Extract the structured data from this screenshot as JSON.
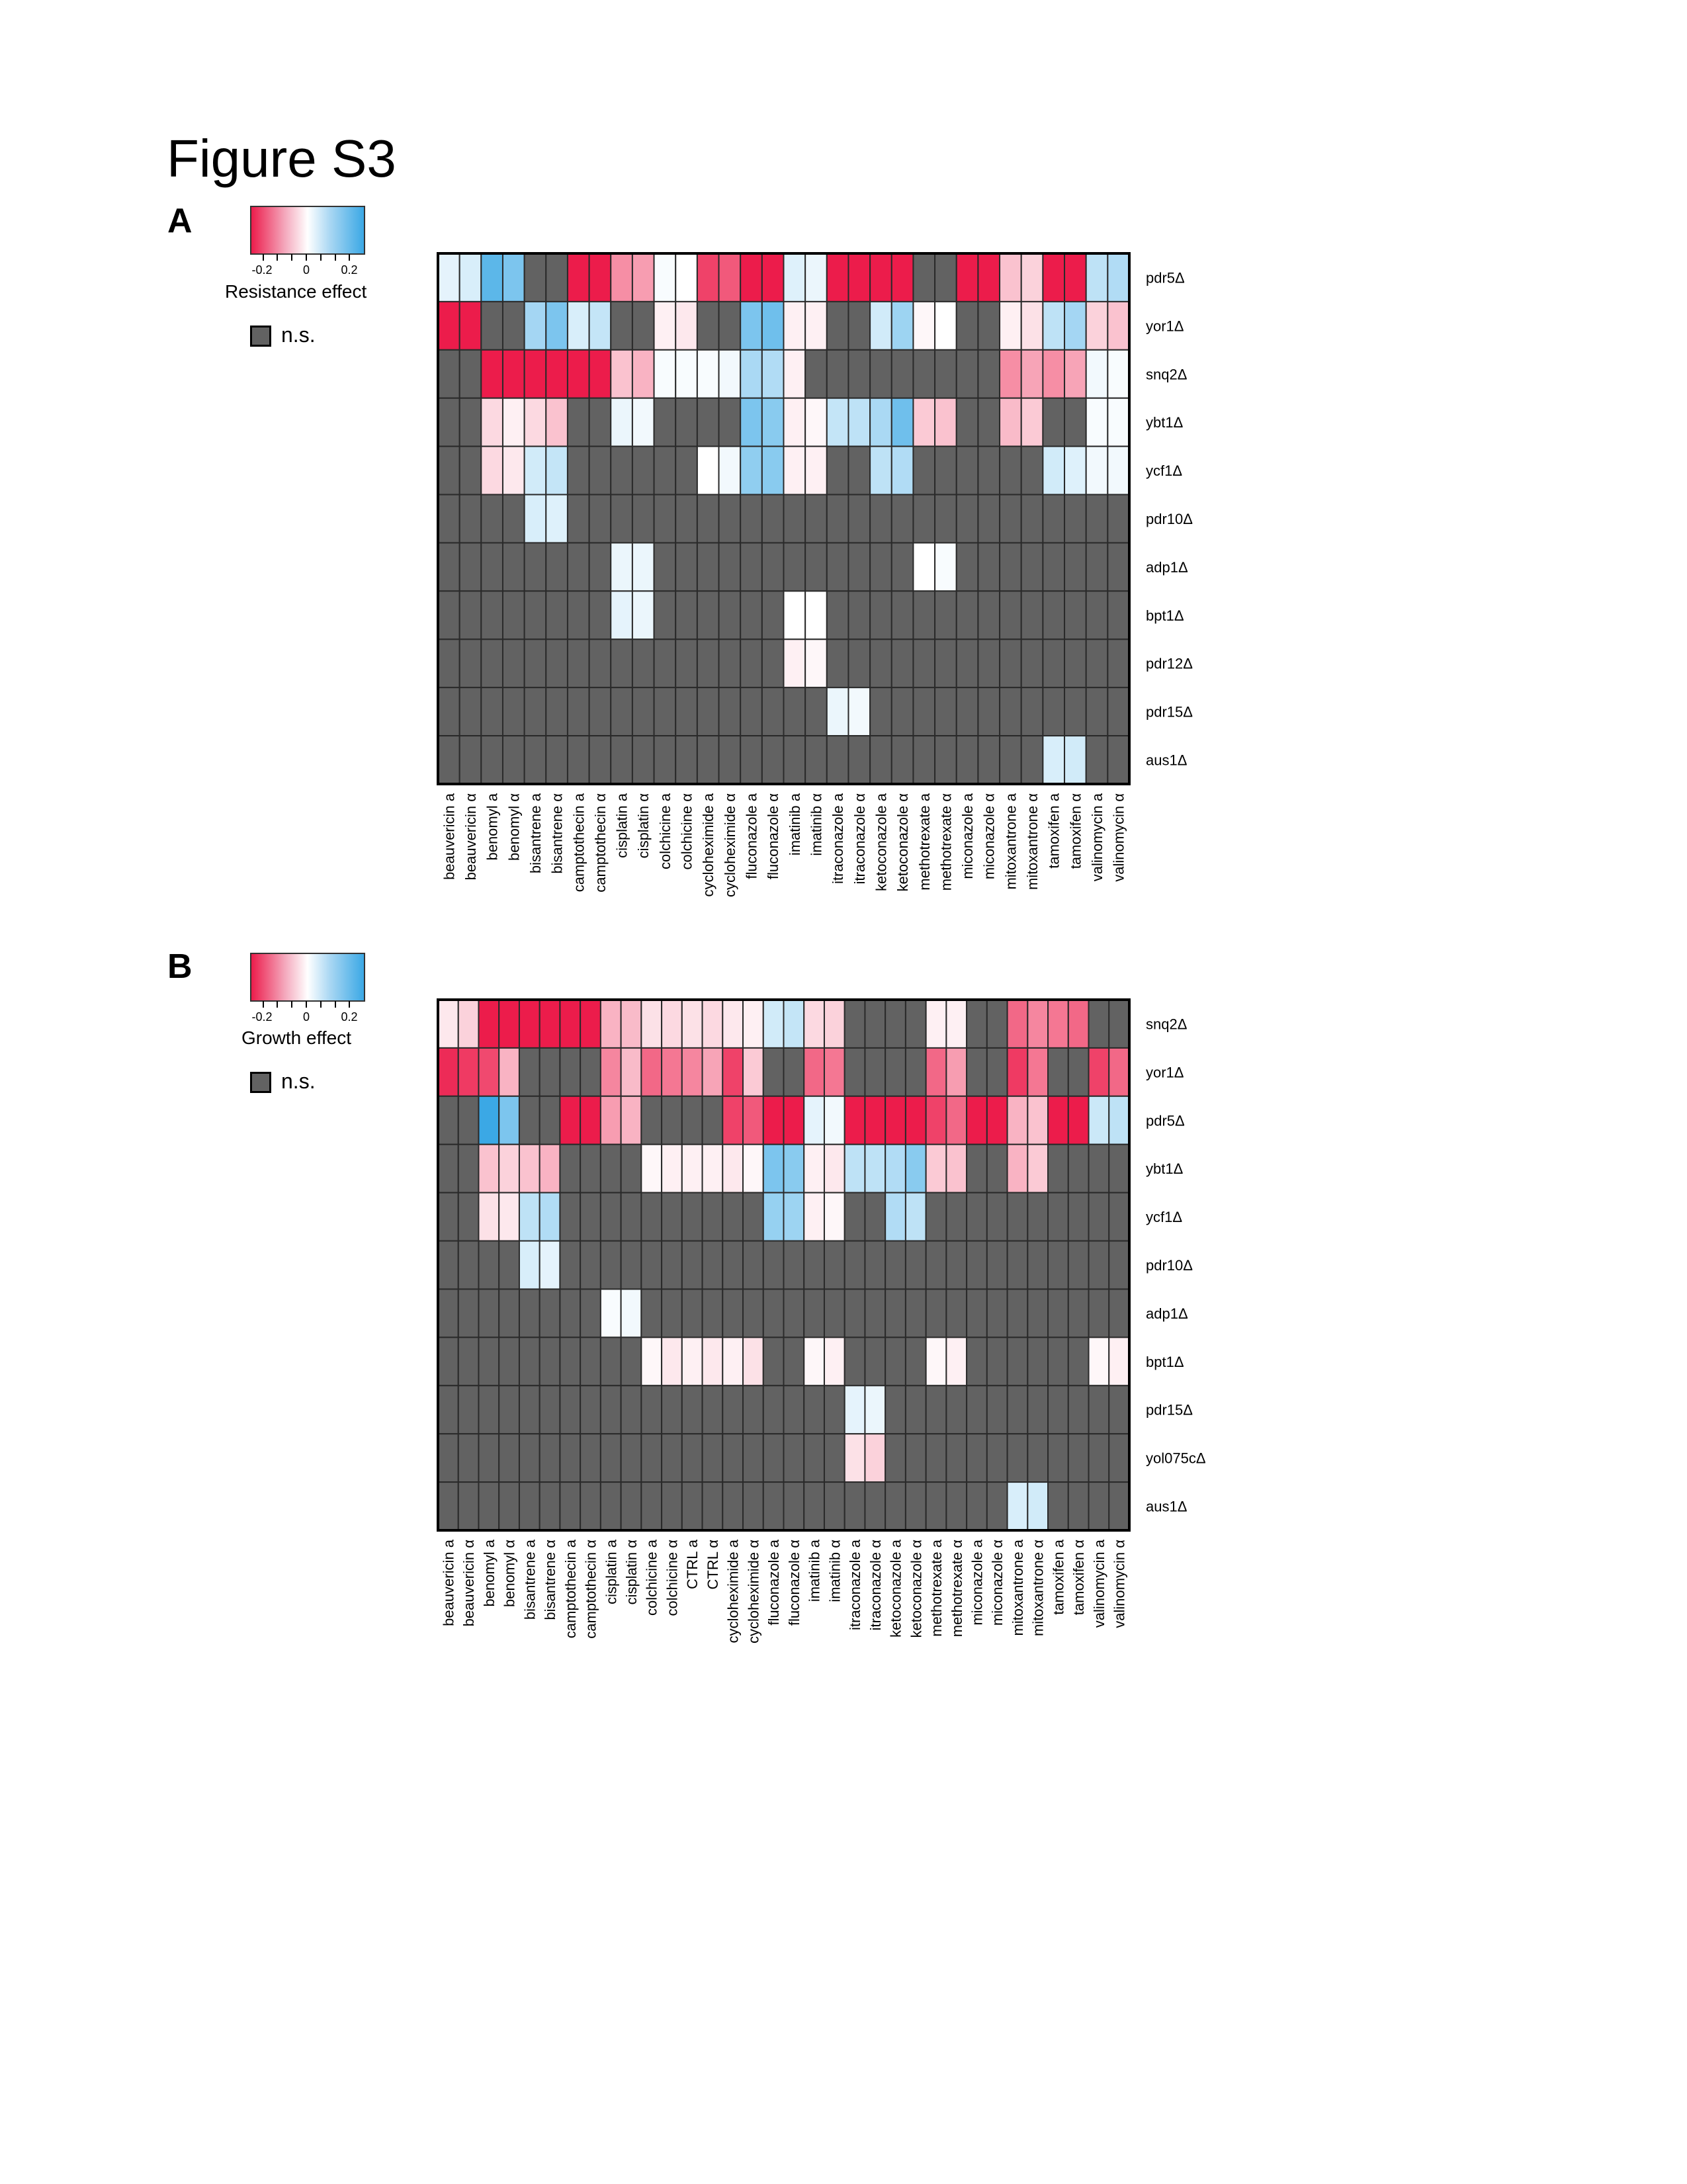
{
  "figure_title": "Figure S3",
  "colors": {
    "ns": "#626262",
    "grid": "#2a2a2a",
    "neg": "#ec1c4b",
    "zero": "#ffffff",
    "pos": "#3ba8e5"
  },
  "panels": [
    {
      "label": "A",
      "colorbar": {
        "title": "Resistance effect",
        "ticks": [
          "-0.2",
          "0",
          "0.2"
        ],
        "range": [
          -0.3,
          0.3
        ]
      },
      "ns_label": "n.s."
    },
    {
      "label": "B",
      "colorbar": {
        "title": "Growth effect",
        "ticks": [
          "-0.2",
          "0",
          "0.2"
        ],
        "range": [
          -0.3,
          0.3
        ]
      },
      "ns_label": "n.s."
    }
  ],
  "chart_data": [
    {
      "type": "heatmap",
      "title": "",
      "colorbar_label": "Resistance effect",
      "missing_label": "n.s.",
      "columns": [
        "beauvericin a",
        "beauvericin α",
        "benomyl a",
        "benomyl α",
        "bisantrene a",
        "bisantrene α",
        "camptothecin a",
        "camptothecin α",
        "cisplatin a",
        "cisplatin α",
        "colchicine a",
        "colchicine α",
        "cycloheximide a",
        "cycloheximide α",
        "fluconazole a",
        "fluconazole α",
        "imatinib a",
        "imatinib α",
        "itraconazole a",
        "itraconazole α",
        "ketoconazole a",
        "ketoconazole α",
        "methotrexate a",
        "methotrexate α",
        "miconazole a",
        "miconazole α",
        "mitoxantrone a",
        "mitoxantrone α",
        "tamoxifen a",
        "tamoxifen α",
        "valinomycin a",
        "valinomycin α"
      ],
      "rows": [
        "pdr5Δ",
        "yor1Δ",
        "snq2Δ",
        "ybt1Δ",
        "ycf1Δ",
        "pdr10Δ",
        "adp1Δ",
        "bpt1Δ",
        "pdr12Δ",
        "pdr15Δ",
        "aus1Δ"
      ],
      "values": [
        [
          0.04,
          0.06,
          0.25,
          0.2,
          null,
          null,
          -0.3,
          -0.3,
          -0.15,
          -0.13,
          0.01,
          0.0,
          -0.25,
          -0.22,
          -0.3,
          -0.3,
          0.05,
          0.03,
          -0.3,
          -0.3,
          -0.3,
          -0.3,
          null,
          null,
          -0.3,
          -0.3,
          -0.08,
          -0.06,
          -0.3,
          -0.3,
          0.1,
          0.12
        ],
        [
          -0.3,
          -0.3,
          null,
          null,
          0.14,
          0.2,
          0.06,
          0.09,
          null,
          null,
          -0.02,
          -0.03,
          null,
          null,
          0.2,
          0.22,
          -0.02,
          -0.02,
          null,
          null,
          0.07,
          0.15,
          -0.01,
          0.0,
          null,
          null,
          -0.02,
          -0.04,
          0.1,
          0.14,
          -0.06,
          -0.08
        ],
        [
          null,
          null,
          -0.3,
          -0.3,
          -0.3,
          -0.3,
          -0.3,
          -0.3,
          -0.08,
          -0.1,
          0.01,
          0.01,
          0.01,
          0.02,
          0.13,
          0.12,
          -0.02,
          null,
          null,
          null,
          null,
          null,
          null,
          null,
          null,
          null,
          -0.15,
          -0.12,
          -0.15,
          -0.12,
          0.02,
          0.01
        ],
        [
          null,
          null,
          -0.05,
          -0.02,
          -0.05,
          -0.08,
          null,
          null,
          0.03,
          0.02,
          null,
          null,
          null,
          null,
          0.2,
          0.18,
          -0.02,
          -0.01,
          0.09,
          0.1,
          0.13,
          0.22,
          -0.07,
          -0.08,
          null,
          null,
          -0.09,
          -0.07,
          null,
          null,
          0.01,
          0.01
        ],
        [
          null,
          null,
          -0.05,
          -0.03,
          0.07,
          0.09,
          null,
          null,
          null,
          null,
          null,
          null,
          0.0,
          0.02,
          0.17,
          0.18,
          -0.02,
          -0.02,
          null,
          null,
          0.1,
          0.12,
          null,
          null,
          null,
          null,
          null,
          null,
          0.07,
          0.05,
          0.02,
          0.02
        ],
        [
          null,
          null,
          null,
          null,
          0.06,
          0.05,
          null,
          null,
          null,
          null,
          null,
          null,
          null,
          null,
          null,
          null,
          null,
          null,
          null,
          null,
          null,
          null,
          null,
          null,
          null,
          null,
          null,
          null,
          null,
          null,
          null,
          null
        ],
        [
          null,
          null,
          null,
          null,
          null,
          null,
          null,
          null,
          0.03,
          0.03,
          null,
          null,
          null,
          null,
          null,
          null,
          null,
          null,
          null,
          null,
          null,
          null,
          0.0,
          0.01,
          null,
          null,
          null,
          null,
          null,
          null,
          null,
          null
        ],
        [
          null,
          null,
          null,
          null,
          null,
          null,
          null,
          null,
          0.04,
          0.03,
          null,
          null,
          null,
          null,
          null,
          null,
          0.0,
          0.0,
          null,
          null,
          null,
          null,
          null,
          null,
          null,
          null,
          null,
          null,
          null,
          null,
          null,
          null
        ],
        [
          null,
          null,
          null,
          null,
          null,
          null,
          null,
          null,
          null,
          null,
          null,
          null,
          null,
          null,
          null,
          null,
          -0.02,
          -0.01,
          null,
          null,
          null,
          null,
          null,
          null,
          null,
          null,
          null,
          null,
          null,
          null,
          null,
          null
        ],
        [
          null,
          null,
          null,
          null,
          null,
          null,
          null,
          null,
          null,
          null,
          null,
          null,
          null,
          null,
          null,
          null,
          null,
          null,
          0.03,
          0.02,
          null,
          null,
          null,
          null,
          null,
          null,
          null,
          null,
          null,
          null,
          null,
          null
        ],
        [
          null,
          null,
          null,
          null,
          null,
          null,
          null,
          null,
          null,
          null,
          null,
          null,
          null,
          null,
          null,
          null,
          null,
          null,
          null,
          null,
          null,
          null,
          null,
          null,
          null,
          null,
          null,
          null,
          0.06,
          0.07,
          null,
          null
        ]
      ],
      "color_range": [
        -0.3,
        0.3
      ]
    },
    {
      "type": "heatmap",
      "title": "",
      "colorbar_label": "Growth effect",
      "missing_label": "n.s.",
      "columns": [
        "beauvericin a",
        "beauvericin α",
        "benomyl a",
        "benomyl α",
        "bisantrene a",
        "bisantrene α",
        "camptothecin a",
        "camptothecin α",
        "cisplatin a",
        "cisplatin α",
        "colchicine a",
        "colchicine α",
        "CTRL a",
        "CTRL α",
        "cycloheximide a",
        "cycloheximide α",
        "fluconazole a",
        "fluconazole α",
        "imatinib a",
        "imatinib α",
        "itraconazole a",
        "itraconazole α",
        "ketoconazole a",
        "ketoconazole α",
        "methotrexate a",
        "methotrexate α",
        "miconazole a",
        "miconazole α",
        "mitoxantrone a",
        "mitoxantrone α",
        "tamoxifen a",
        "tamoxifen α",
        "valinomycin a",
        "valinomycin α"
      ],
      "rows": [
        "snq2Δ",
        "yor1Δ",
        "pdr5Δ",
        "ybt1Δ",
        "ycf1Δ",
        "pdr10Δ",
        "adp1Δ",
        "bpt1Δ",
        "pdr15Δ",
        "yol075cΔ",
        "aus1Δ"
      ],
      "values": [
        [
          -0.03,
          -0.06,
          -0.3,
          -0.3,
          -0.3,
          -0.3,
          -0.3,
          -0.3,
          -0.1,
          -0.09,
          -0.04,
          -0.05,
          -0.04,
          -0.05,
          -0.03,
          -0.02,
          0.07,
          0.09,
          -0.05,
          -0.06,
          null,
          null,
          null,
          null,
          -0.02,
          -0.02,
          null,
          null,
          -0.2,
          -0.16,
          -0.18,
          -0.2,
          null,
          null
        ],
        [
          -0.28,
          -0.26,
          -0.24,
          -0.1,
          null,
          null,
          null,
          null,
          -0.16,
          -0.09,
          -0.2,
          -0.18,
          -0.16,
          -0.12,
          -0.25,
          -0.07,
          null,
          null,
          -0.2,
          -0.18,
          null,
          null,
          null,
          null,
          -0.2,
          -0.13,
          null,
          null,
          -0.26,
          -0.18,
          null,
          null,
          -0.25,
          -0.2
        ],
        [
          null,
          null,
          0.3,
          0.2,
          null,
          null,
          -0.3,
          -0.3,
          -0.13,
          -0.1,
          null,
          null,
          null,
          null,
          -0.25,
          -0.22,
          -0.3,
          -0.3,
          0.04,
          0.02,
          -0.3,
          -0.3,
          -0.3,
          -0.3,
          -0.25,
          -0.2,
          -0.3,
          -0.3,
          -0.1,
          -0.08,
          -0.3,
          -0.3,
          0.08,
          0.1
        ],
        [
          null,
          null,
          -0.08,
          -0.06,
          -0.08,
          -0.1,
          null,
          null,
          null,
          null,
          -0.01,
          -0.02,
          -0.02,
          -0.02,
          -0.03,
          -0.01,
          0.2,
          0.18,
          -0.02,
          -0.03,
          0.1,
          0.1,
          0.12,
          0.18,
          -0.07,
          -0.08,
          null,
          null,
          -0.1,
          -0.07,
          null,
          null,
          null,
          null
        ],
        [
          null,
          null,
          -0.04,
          -0.03,
          0.1,
          0.12,
          null,
          null,
          null,
          null,
          null,
          null,
          null,
          null,
          null,
          null,
          0.16,
          0.15,
          -0.02,
          -0.01,
          null,
          null,
          0.12,
          0.1,
          null,
          null,
          null,
          null,
          null,
          null,
          null,
          null,
          null,
          null
        ],
        [
          null,
          null,
          null,
          null,
          0.06,
          0.04,
          null,
          null,
          null,
          null,
          null,
          null,
          null,
          null,
          null,
          null,
          null,
          null,
          null,
          null,
          null,
          null,
          null,
          null,
          null,
          null,
          null,
          null,
          null,
          null,
          null,
          null,
          null,
          null
        ],
        [
          null,
          null,
          null,
          null,
          null,
          null,
          null,
          null,
          0.01,
          0.02,
          null,
          null,
          null,
          null,
          null,
          null,
          null,
          null,
          null,
          null,
          null,
          null,
          null,
          null,
          null,
          null,
          null,
          null,
          null,
          null,
          null,
          null,
          null,
          null
        ],
        [
          null,
          null,
          null,
          null,
          null,
          null,
          null,
          null,
          null,
          null,
          -0.01,
          -0.03,
          -0.02,
          -0.03,
          -0.02,
          -0.04,
          null,
          null,
          -0.01,
          -0.02,
          null,
          null,
          null,
          null,
          -0.01,
          -0.02,
          null,
          null,
          null,
          null,
          null,
          null,
          -0.01,
          -0.02
        ],
        [
          null,
          null,
          null,
          null,
          null,
          null,
          null,
          null,
          null,
          null,
          null,
          null,
          null,
          null,
          null,
          null,
          null,
          null,
          null,
          null,
          0.04,
          0.03,
          null,
          null,
          null,
          null,
          null,
          null,
          null,
          null,
          null,
          null,
          null,
          null
        ],
        [
          null,
          null,
          null,
          null,
          null,
          null,
          null,
          null,
          null,
          null,
          null,
          null,
          null,
          null,
          null,
          null,
          null,
          null,
          null,
          null,
          -0.04,
          -0.06,
          null,
          null,
          null,
          null,
          null,
          null,
          null,
          null,
          null,
          null,
          null,
          null
        ],
        [
          null,
          null,
          null,
          null,
          null,
          null,
          null,
          null,
          null,
          null,
          null,
          null,
          null,
          null,
          null,
          null,
          null,
          null,
          null,
          null,
          null,
          null,
          null,
          null,
          null,
          null,
          null,
          null,
          0.06,
          0.07,
          null,
          null,
          null,
          null
        ]
      ],
      "color_range": [
        -0.3,
        0.3
      ]
    }
  ]
}
